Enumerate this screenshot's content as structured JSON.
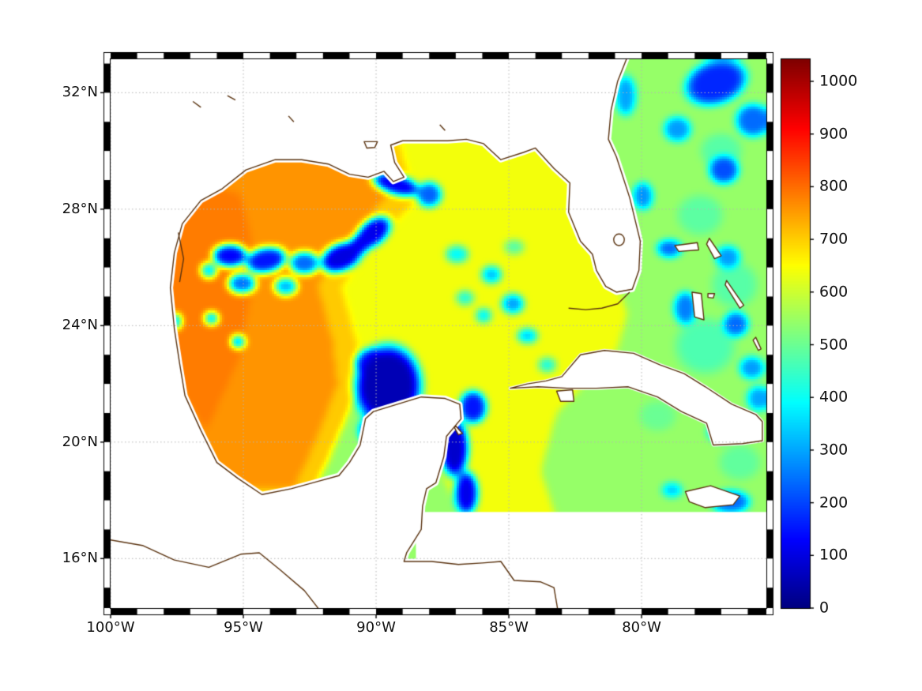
{
  "figure": {
    "kind": "geographic heatmap with colorbar",
    "background": "#ffffff",
    "coast_color": "#5a3310",
    "land_color": "#ffffff",
    "grid_color": "#b5b5b5",
    "frame_colors": [
      "#000000",
      "#ffffff"
    ]
  },
  "axes": {
    "lon_range": [
      -100,
      -75.3
    ],
    "lat_range": [
      14.3,
      33.15
    ],
    "x_ticks": [
      {
        "deg": -100,
        "label": "100°W"
      },
      {
        "deg": -95,
        "label": "95°W"
      },
      {
        "deg": -90,
        "label": "90°W"
      },
      {
        "deg": -85,
        "label": "85°W"
      },
      {
        "deg": -80,
        "label": "80°W"
      }
    ],
    "y_ticks": [
      {
        "deg": 32,
        "label": "32°N"
      },
      {
        "deg": 28,
        "label": "28°N"
      },
      {
        "deg": 24,
        "label": "24°N"
      },
      {
        "deg": 20,
        "label": "20°N"
      },
      {
        "deg": 16,
        "label": "16°N"
      }
    ]
  },
  "colorbar": {
    "colormap": "jet",
    "vmin": 0,
    "vmax": 1042,
    "ticks": [
      {
        "v": 0,
        "label": "0"
      },
      {
        "v": 100,
        "label": "100"
      },
      {
        "v": 200,
        "label": "200"
      },
      {
        "v": 300,
        "label": "300"
      },
      {
        "v": 400,
        "label": "400"
      },
      {
        "v": 500,
        "label": "500"
      },
      {
        "v": 600,
        "label": "600"
      },
      {
        "v": 700,
        "label": "700"
      },
      {
        "v": 800,
        "label": "800"
      },
      {
        "v": 900,
        "label": "900"
      },
      {
        "v": 1000,
        "label": "1000"
      }
    ]
  },
  "chart_data": {
    "type": "heatmap",
    "colormap": "jet",
    "value_range": [
      0,
      1042
    ],
    "no_data": {
      "lon_east_of": -88.5,
      "lat_below": 17.6
    },
    "base_regions": [
      {
        "name": "atlantic-caribbean-green",
        "v": 545,
        "poly": [
          [
            -101,
            34
          ],
          [
            -75,
            34
          ],
          [
            -75,
            14
          ],
          [
            -101,
            14
          ]
        ]
      },
      {
        "name": "east-gulf-yellow",
        "v": 640,
        "poly": [
          [
            -93.2,
            31.5
          ],
          [
            -82.6,
            31.5
          ],
          [
            -82.3,
            28.8
          ],
          [
            -81.1,
            26.0
          ],
          [
            -80.55,
            24.4
          ],
          [
            -80.9,
            23.2
          ],
          [
            -83.2,
            21.0
          ],
          [
            -83.8,
            19.0
          ],
          [
            -83.0,
            16.8
          ],
          [
            -86.3,
            16.8
          ],
          [
            -87.5,
            18.8
          ],
          [
            -88.0,
            20.8
          ],
          [
            -89.3,
            22.2
          ],
          [
            -91.5,
            22.9
          ],
          [
            -93.3,
            24.6
          ]
        ]
      },
      {
        "name": "transition-band",
        "v": 705,
        "poly": [
          [
            -98.4,
            30.6
          ],
          [
            -89.2,
            30.4
          ],
          [
            -88.45,
            28.3
          ],
          [
            -90.15,
            26.85
          ],
          [
            -91.3,
            25.3
          ],
          [
            -90.75,
            23.5
          ],
          [
            -90.55,
            22.1
          ],
          [
            -91.5,
            20.0
          ],
          [
            -92.4,
            18.2
          ],
          [
            -97.3,
            18.2
          ],
          [
            -98.4,
            23.0
          ]
        ]
      },
      {
        "name": "west-gulf-orange",
        "v": 760,
        "poly": [
          [
            -98.3,
            30.3
          ],
          [
            -93.2,
            30.2
          ],
          [
            -89.9,
            29.8
          ],
          [
            -89.55,
            28.5
          ],
          [
            -91.1,
            26.9
          ],
          [
            -92.2,
            25.4
          ],
          [
            -91.65,
            23.5
          ],
          [
            -91.45,
            22.0
          ],
          [
            -92.3,
            20.0
          ],
          [
            -93.1,
            18.4
          ],
          [
            -96.9,
            18.4
          ],
          [
            -98.2,
            22.5
          ]
        ]
      },
      {
        "name": "west-gulf-core",
        "v": 785,
        "poly": [
          [
            -97.9,
            29.2
          ],
          [
            -95.1,
            28.5
          ],
          [
            -94.5,
            26.2
          ],
          [
            -95.15,
            22.9
          ],
          [
            -96.4,
            20.4
          ],
          [
            -97.5,
            22.0
          ],
          [
            -97.85,
            25.6
          ]
        ]
      }
    ],
    "blobs": [
      [
        -77.6,
        23.3,
        1.3,
        1.1,
        470,
        0
      ],
      [
        -76.5,
        25.4,
        1.0,
        0.9,
        480,
        0
      ],
      [
        -77.8,
        27.8,
        1.0,
        0.8,
        485,
        0
      ],
      [
        -76.3,
        19.3,
        0.9,
        0.7,
        490,
        0
      ],
      [
        -79.4,
        20.9,
        0.8,
        0.6,
        500,
        0
      ],
      [
        -77.0,
        30.0,
        0.9,
        0.7,
        480,
        0
      ],
      [
        -85.65,
        25.75,
        0.45,
        0.35,
        330,
        0
      ],
      [
        -84.85,
        24.75,
        0.5,
        0.4,
        300,
        0
      ],
      [
        -85.95,
        24.35,
        0.35,
        0.3,
        380,
        0
      ],
      [
        -84.3,
        23.65,
        0.45,
        0.3,
        340,
        0
      ],
      [
        -86.65,
        24.95,
        0.4,
        0.3,
        430,
        0
      ],
      [
        -86.95,
        26.45,
        0.5,
        0.35,
        390,
        0
      ],
      [
        -83.55,
        22.65,
        0.4,
        0.3,
        420,
        0
      ],
      [
        -84.8,
        26.7,
        0.45,
        0.3,
        480,
        0
      ],
      [
        -96.3,
        25.9,
        0.35,
        0.3,
        350,
        0
      ],
      [
        -93.4,
        25.35,
        0.5,
        0.35,
        320,
        0
      ],
      [
        -96.2,
        24.25,
        0.3,
        0.25,
        320,
        0
      ],
      [
        -95.2,
        23.45,
        0.3,
        0.25,
        280,
        0
      ],
      [
        -97.55,
        24.15,
        0.25,
        0.3,
        300,
        0
      ],
      [
        -97.5,
        21.6,
        0.22,
        0.25,
        380,
        0
      ],
      [
        -78.65,
        30.75,
        0.6,
        0.5,
        290,
        0
      ],
      [
        -76.9,
        29.35,
        0.65,
        0.55,
        210,
        0
      ],
      [
        -79.95,
        28.45,
        0.45,
        0.55,
        280,
        0
      ],
      [
        -80.6,
        31.9,
        0.45,
        0.8,
        300,
        0
      ],
      [
        -78.95,
        26.65,
        0.55,
        0.35,
        240,
        0
      ],
      [
        -76.75,
        26.35,
        0.55,
        0.45,
        290,
        0
      ],
      [
        -78.35,
        24.6,
        0.5,
        0.65,
        260,
        0
      ],
      [
        -76.45,
        24.05,
        0.55,
        0.5,
        240,
        0
      ],
      [
        -75.85,
        22.55,
        0.55,
        0.45,
        290,
        0
      ],
      [
        -77.05,
        20.35,
        0.55,
        0.4,
        330,
        0
      ],
      [
        -76.65,
        17.95,
        0.85,
        0.45,
        240,
        0
      ],
      [
        -78.85,
        18.35,
        0.45,
        0.3,
        340,
        0
      ],
      [
        -79.95,
        22.45,
        0.4,
        0.3,
        430,
        0
      ],
      [
        -75.6,
        21.5,
        0.5,
        0.5,
        300,
        0
      ],
      [
        -75.8,
        31.05,
        0.75,
        0.65,
        240,
        0
      ],
      [
        -77.2,
        32.35,
        1.35,
        0.85,
        170,
        15
      ],
      [
        -92.7,
        26.15,
        0.65,
        0.45,
        240,
        0
      ],
      [
        -94.15,
        26.25,
        0.9,
        0.5,
        150,
        10
      ],
      [
        -95.5,
        26.4,
        0.75,
        0.45,
        130,
        0
      ],
      [
        -95.05,
        25.45,
        0.6,
        0.4,
        250,
        0
      ],
      [
        -90.6,
        26.8,
        0.5,
        0.4,
        140,
        30
      ],
      [
        -90.1,
        27.2,
        0.85,
        0.5,
        110,
        35
      ],
      [
        -91.3,
        26.35,
        0.95,
        0.55,
        100,
        20
      ],
      [
        -89.25,
        28.85,
        1.05,
        0.4,
        120,
        -15
      ],
      [
        -88.0,
        28.5,
        0.55,
        0.5,
        230,
        0
      ],
      [
        -90.3,
        22.8,
        0.6,
        0.45,
        250,
        20
      ],
      [
        -89.55,
        21.95,
        1.45,
        1.6,
        55,
        0
      ],
      [
        -88.65,
        20.35,
        0.95,
        0.95,
        50,
        0
      ],
      [
        -90.0,
        20.4,
        0.75,
        0.6,
        160,
        0
      ],
      [
        -86.35,
        21.2,
        0.6,
        0.65,
        150,
        0
      ],
      [
        -87.05,
        19.8,
        0.6,
        1.15,
        80,
        0
      ],
      [
        -86.6,
        18.25,
        0.5,
        0.85,
        110,
        0
      ]
    ]
  },
  "map": {
    "mainland_coast": [
      [
        -80.55,
        33.2
      ],
      [
        -80.9,
        32.4
      ],
      [
        -81.15,
        31.4
      ],
      [
        -81.25,
        30.4
      ],
      [
        -80.95,
        29.8
      ],
      [
        -80.45,
        28.4
      ],
      [
        -80.05,
        26.9
      ],
      [
        -80.1,
        25.9
      ],
      [
        -80.35,
        25.25
      ],
      [
        -80.95,
        25.15
      ],
      [
        -81.35,
        25.35
      ],
      [
        -81.7,
        25.9
      ],
      [
        -81.85,
        26.45
      ],
      [
        -82.3,
        26.9
      ],
      [
        -82.75,
        27.9
      ],
      [
        -82.7,
        28.9
      ],
      [
        -83.3,
        29.4
      ],
      [
        -84.0,
        30.1
      ],
      [
        -84.45,
        29.95
      ],
      [
        -85.3,
        29.7
      ],
      [
        -85.95,
        30.25
      ],
      [
        -86.6,
        30.4
      ],
      [
        -87.3,
        30.35
      ],
      [
        -88.1,
        30.35
      ],
      [
        -89.0,
        30.35
      ],
      [
        -89.45,
        30.2
      ],
      [
        -89.3,
        29.6
      ],
      [
        -88.95,
        29.1
      ],
      [
        -89.35,
        28.95
      ],
      [
        -89.7,
        29.3
      ],
      [
        -90.3,
        29.1
      ],
      [
        -91.0,
        29.2
      ],
      [
        -91.8,
        29.55
      ],
      [
        -92.8,
        29.7
      ],
      [
        -93.8,
        29.7
      ],
      [
        -94.9,
        29.35
      ],
      [
        -95.8,
        28.7
      ],
      [
        -96.6,
        28.3
      ],
      [
        -97.3,
        27.5
      ],
      [
        -97.6,
        26.5
      ],
      [
        -97.75,
        25.3
      ],
      [
        -97.6,
        23.9
      ],
      [
        -97.4,
        22.7
      ],
      [
        -97.2,
        21.6
      ],
      [
        -96.6,
        20.4
      ],
      [
        -96.0,
        19.3
      ],
      [
        -95.2,
        18.75
      ],
      [
        -94.3,
        18.2
      ],
      [
        -93.2,
        18.4
      ],
      [
        -92.2,
        18.65
      ],
      [
        -91.4,
        18.85
      ],
      [
        -91.0,
        19.3
      ],
      [
        -90.6,
        19.9
      ],
      [
        -90.4,
        20.8
      ],
      [
        -90.1,
        21.05
      ],
      [
        -89.2,
        21.3
      ],
      [
        -88.3,
        21.55
      ],
      [
        -87.4,
        21.5
      ],
      [
        -86.85,
        21.3
      ],
      [
        -86.8,
        20.8
      ],
      [
        -87.35,
        20.2
      ],
      [
        -87.45,
        19.5
      ],
      [
        -87.75,
        18.6
      ],
      [
        -88.1,
        18.4
      ],
      [
        -88.25,
        17.8
      ],
      [
        -88.3,
        17.0
      ],
      [
        -88.85,
        16.2
      ],
      [
        -88.95,
        15.9
      ],
      [
        -87.9,
        15.9
      ],
      [
        -86.9,
        15.8
      ],
      [
        -86.0,
        15.85
      ],
      [
        -85.3,
        15.9
      ],
      [
        -84.8,
        15.25
      ],
      [
        -83.8,
        15.2
      ],
      [
        -83.3,
        15.0
      ],
      [
        -83.15,
        14.2
      ]
    ],
    "mainland_closure": [
      [
        -100.4,
        14.2
      ],
      [
        -100.4,
        33.2
      ]
    ],
    "islands": {
      "cuba": [
        [
          -84.95,
          21.85
        ],
        [
          -84.3,
          22.0
        ],
        [
          -83.6,
          22.1
        ],
        [
          -83.0,
          22.25
        ],
        [
          -82.3,
          23.0
        ],
        [
          -81.4,
          23.15
        ],
        [
          -80.3,
          23.05
        ],
        [
          -79.3,
          22.65
        ],
        [
          -78.4,
          22.35
        ],
        [
          -77.6,
          21.9
        ],
        [
          -76.6,
          21.3
        ],
        [
          -75.7,
          20.95
        ],
        [
          -75.45,
          20.7
        ],
        [
          -75.45,
          20.05
        ],
        [
          -76.2,
          19.95
        ],
        [
          -77.3,
          19.9
        ],
        [
          -77.55,
          20.65
        ],
        [
          -78.5,
          21.05
        ],
        [
          -79.4,
          21.55
        ],
        [
          -80.5,
          21.9
        ],
        [
          -81.7,
          21.85
        ],
        [
          -82.8,
          21.85
        ],
        [
          -83.9,
          21.9
        ]
      ],
      "isla_juventud": [
        [
          -83.2,
          21.75
        ],
        [
          -82.6,
          21.8
        ],
        [
          -82.55,
          21.4
        ],
        [
          -83.05,
          21.4
        ]
      ],
      "jamaica": [
        [
          -78.35,
          18.3
        ],
        [
          -77.4,
          18.5
        ],
        [
          -76.3,
          18.15
        ],
        [
          -76.55,
          17.85
        ],
        [
          -77.6,
          17.75
        ],
        [
          -78.2,
          17.95
        ]
      ],
      "grand_bahama": [
        [
          -78.75,
          26.75
        ],
        [
          -77.9,
          26.85
        ],
        [
          -77.85,
          26.6
        ],
        [
          -78.6,
          26.55
        ]
      ],
      "abaco": [
        [
          -77.45,
          27.0
        ],
        [
          -77.0,
          26.4
        ],
        [
          -77.25,
          26.3
        ],
        [
          -77.55,
          26.8
        ]
      ],
      "andros": [
        [
          -78.1,
          25.15
        ],
        [
          -77.75,
          25.1
        ],
        [
          -77.65,
          24.2
        ],
        [
          -78.0,
          24.3
        ]
      ],
      "new_providence": [
        [
          -77.5,
          25.1
        ],
        [
          -77.25,
          25.1
        ],
        [
          -77.3,
          24.95
        ],
        [
          -77.5,
          24.97
        ]
      ],
      "eleuthera": [
        [
          -76.8,
          25.55
        ],
        [
          -76.15,
          24.7
        ],
        [
          -76.3,
          24.6
        ],
        [
          -76.85,
          25.4
        ]
      ],
      "long_island": [
        [
          -75.7,
          23.6
        ],
        [
          -75.5,
          23.2
        ],
        [
          -75.6,
          23.15
        ],
        [
          -75.8,
          23.5
        ]
      ],
      "cozumel": [
        [
          -87.0,
          20.55
        ],
        [
          -86.75,
          20.3
        ],
        [
          -86.9,
          20.25
        ],
        [
          -87.05,
          20.5
        ]
      ],
      "pontchartrain": [
        [
          -90.45,
          30.32
        ],
        [
          -89.95,
          30.32
        ],
        [
          -90.05,
          30.12
        ],
        [
          -90.35,
          30.1
        ]
      ]
    },
    "open_lines": {
      "pacific_coast": [
        [
          -100.4,
          16.7
        ],
        [
          -98.8,
          16.45
        ],
        [
          -97.6,
          15.95
        ],
        [
          -96.3,
          15.7
        ],
        [
          -95.1,
          16.15
        ],
        [
          -94.4,
          16.2
        ],
        [
          -93.6,
          15.6
        ],
        [
          -92.7,
          14.9
        ],
        [
          -92.1,
          14.2
        ]
      ],
      "florida_keys": [
        [
          -80.45,
          25.15
        ],
        [
          -80.9,
          24.75
        ],
        [
          -81.5,
          24.6
        ],
        [
          -82.1,
          24.55
        ],
        [
          -82.75,
          24.6
        ]
      ],
      "texas_lagoon": [
        [
          -97.45,
          27.2
        ],
        [
          -97.25,
          26.3
        ],
        [
          -97.4,
          25.5
        ]
      ],
      "speck1": [
        [
          -96.9,
          31.7
        ],
        [
          -96.6,
          31.5
        ]
      ],
      "speck2": [
        [
          -95.6,
          31.9
        ],
        [
          -95.3,
          31.75
        ]
      ],
      "speck3": [
        [
          -93.3,
          31.2
        ],
        [
          -93.1,
          31.0
        ]
      ],
      "speck4": [
        [
          -87.6,
          30.9
        ],
        [
          -87.4,
          30.7
        ]
      ]
    },
    "lakes": [
      {
        "lon": -80.85,
        "lat": 26.95,
        "r": 0.2
      }
    ]
  }
}
